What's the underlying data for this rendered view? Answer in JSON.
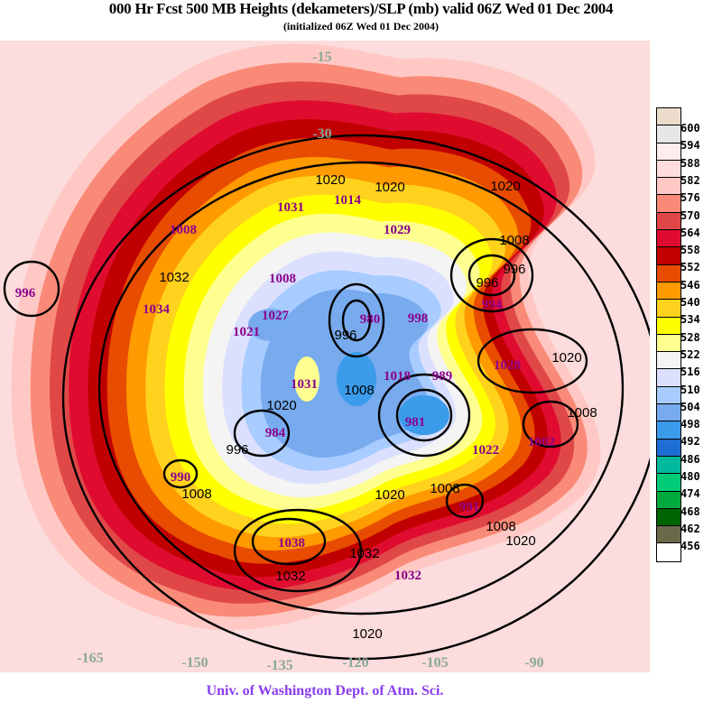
{
  "title": "000 Hr Fcst 500 MB Heights (dekameters)/SLP (mb) valid 06Z Wed 01 Dec 2004",
  "subtitle": "(initialized 06Z Wed 01 Dec 2004)",
  "footer": "Univ. of Washington Dept. of Atm. Sci.",
  "legend": {
    "colors": [
      "#ecdccb",
      "#e6e6e6",
      "#ffecec",
      "#ffdcdc",
      "#ffc8c4",
      "#fa8a78",
      "#e04848",
      "#e00c30",
      "#c00000",
      "#e84c00",
      "#ff9a00",
      "#ffd21e",
      "#ffff00",
      "#ffff90",
      "#f4f4f4",
      "#dce0ff",
      "#a8ccff",
      "#78aaee",
      "#3c9cec",
      "#1e6ed4",
      "#00b89c",
      "#00cc78",
      "#00aa3c",
      "#006400",
      "#6a6a4a",
      "#ffffff"
    ],
    "labels": [
      "600",
      "594",
      "588",
      "582",
      "576",
      "570",
      "564",
      "558",
      "552",
      "546",
      "540",
      "534",
      "528",
      "522",
      "516",
      "510",
      "504",
      "498",
      "492",
      "486",
      "480",
      "474",
      "468",
      "462",
      "456"
    ]
  },
  "map": {
    "pressure_centers": [
      "996",
      "1008",
      "1031",
      "1014",
      "1029",
      "1034",
      "1008",
      "1027",
      "1021",
      "980",
      "998",
      "994",
      "1028",
      "1002",
      "1031",
      "1018",
      "989",
      "984",
      "981",
      "1022",
      "990",
      "991",
      "1038",
      "1032"
    ],
    "contour_labels": [
      "1020",
      "1020",
      "1020",
      "1008",
      "996",
      "996",
      "1032",
      "996",
      "1020",
      "1008",
      "996",
      "1008",
      "1020",
      "1008",
      "1008",
      "1020",
      "1032",
      "1032",
      "1020",
      "1020",
      "1008"
    ],
    "longitude_labels": [
      "-15",
      "-30",
      "-165",
      "-150",
      "-135",
      "-120",
      "-105",
      "-90"
    ]
  }
}
